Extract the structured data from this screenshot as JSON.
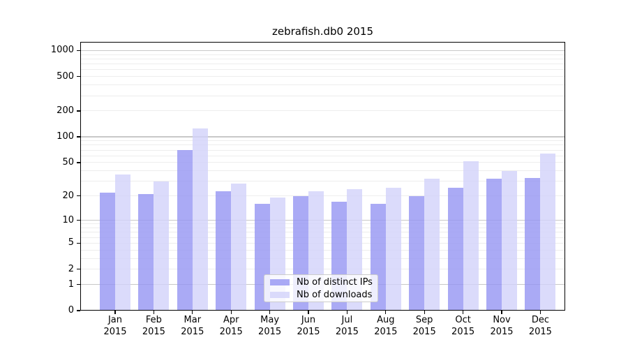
{
  "chart_data": {
    "type": "bar",
    "title": "zebrafish.db0 2015",
    "categories": [
      "Jan",
      "Feb",
      "Mar",
      "Apr",
      "May",
      "Jun",
      "Jul",
      "Aug",
      "Sep",
      "Oct",
      "Nov",
      "Dec"
    ],
    "year_label": "2015",
    "series": [
      {
        "name": "Nb of distinct IPs",
        "color": "#9595f3",
        "values": [
          22,
          21,
          70,
          23,
          16,
          20,
          17,
          16,
          20,
          25,
          32,
          33
        ]
      },
      {
        "name": "Nb of downloads",
        "color": "#d2d2fa",
        "values": [
          36,
          30,
          126,
          28,
          19,
          23,
          24,
          25,
          32,
          52,
          40,
          64
        ]
      }
    ],
    "y_ticks": [
      1000,
      500,
      200,
      100,
      50,
      20,
      10,
      5,
      2,
      1,
      0
    ],
    "y_major_gridlines": [
      1,
      10,
      100,
      1000
    ],
    "ylim": [
      0,
      1259
    ],
    "y_scale": "log10(1+y)",
    "grid": true,
    "legend_position": "lower center"
  },
  "colors": {
    "axis": "#000000",
    "major_grid": "#c8c8c8",
    "minor_grid": "#ededed",
    "legend_border": "#cccccc",
    "legend_background": "#ffffff",
    "text": "#000000"
  }
}
